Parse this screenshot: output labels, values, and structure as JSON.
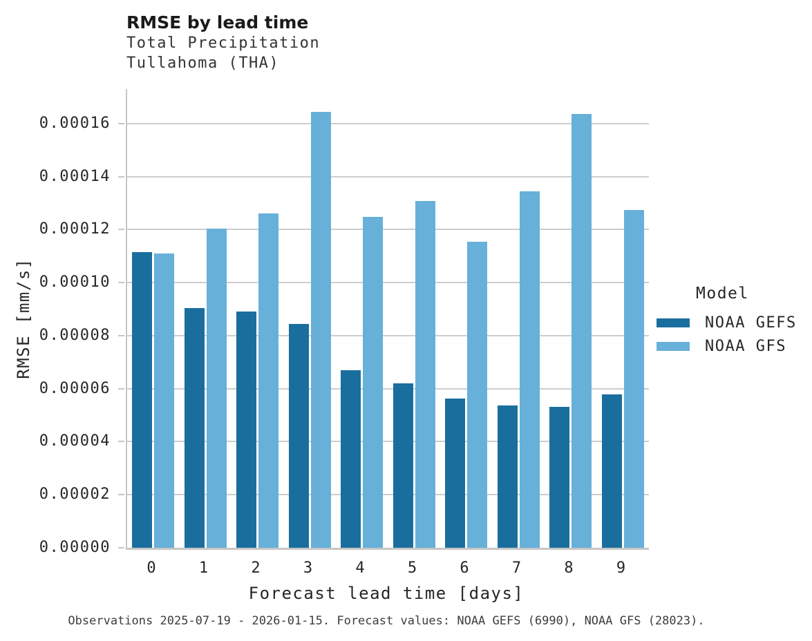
{
  "header": {
    "title": "RMSE by lead time",
    "subtitle_line1": "Total Precipitation",
    "subtitle_line2": "Tullahoma (THA)"
  },
  "chart_data": {
    "type": "bar",
    "title": "RMSE by lead time",
    "subtitle": [
      "Total Precipitation",
      "Tullahoma (THA)"
    ],
    "xlabel": "Forecast lead time [days]",
    "ylabel": "RMSE [mm/s]",
    "categories": [
      "0",
      "1",
      "2",
      "3",
      "4",
      "5",
      "6",
      "7",
      "8",
      "9"
    ],
    "series": [
      {
        "name": "NOAA GEFS",
        "color": "#1A6E9E",
        "values": [
          0.0001115,
          9.05e-05,
          8.9e-05,
          8.45e-05,
          6.7e-05,
          6.2e-05,
          5.63e-05,
          5.37e-05,
          5.32e-05,
          5.78e-05
        ]
      },
      {
        "name": "NOAA GFS",
        "color": "#66B0D9",
        "values": [
          0.000111,
          0.0001205,
          0.0001262,
          0.0001645,
          0.0001247,
          0.0001308,
          0.0001153,
          0.0001345,
          0.0001637,
          0.0001274
        ]
      }
    ],
    "ylim": [
      0,
      0.000173
    ],
    "yticks": [
      0.0,
      2e-05,
      4e-05,
      6e-05,
      8e-05,
      0.0001,
      0.00012,
      0.00014,
      0.00016
    ],
    "ytick_decimals": 5,
    "grid": "horizontal",
    "legend": {
      "title": "Model",
      "position": "right"
    }
  },
  "legend": {
    "title": "Model"
  },
  "footer": {
    "caption": "Observations 2025-07-19 - 2026-01-15. Forecast values: NOAA GEFS (6990), NOAA GFS (28023)."
  },
  "colors": {
    "series_dark": "#1A6E9E",
    "series_light": "#66B0D9",
    "gridline": "#cdcdcd",
    "spine": "#c6c6c6",
    "text": "#262626",
    "caption_text": "#3d3d3d",
    "background": "#ffffff"
  }
}
